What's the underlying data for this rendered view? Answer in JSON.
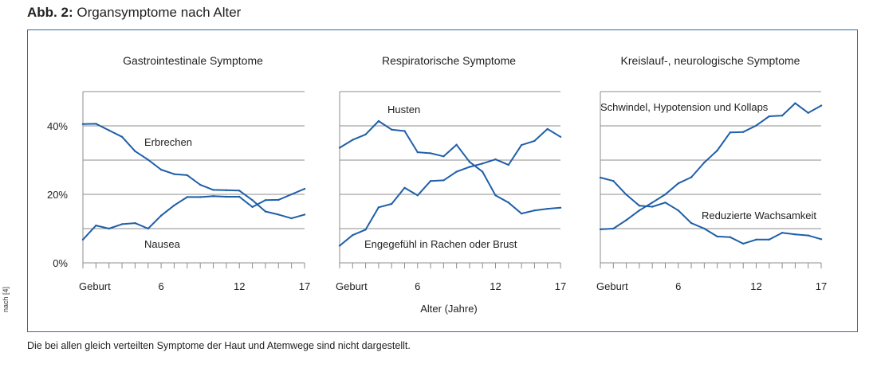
{
  "figure": {
    "label": "Abb. 2:",
    "title": "Organsymptome nach Alter",
    "source_note": "nach [4]",
    "footnote": "Die bei allen gleich verteilten Symptome der Haut und Atemwege sind nicht dargestellt.",
    "x_axis_label": "Alter (Jahre)",
    "colors": {
      "line": "#1f5fa8",
      "grid": "#8c8c8c",
      "frame": "#2b6cb0"
    }
  },
  "chart_data": [
    {
      "type": "line",
      "title": "Gastrointestinale Symptome",
      "x": [
        0,
        1,
        2,
        3,
        4,
        5,
        6,
        7,
        8,
        9,
        10,
        11,
        12,
        13,
        14,
        15,
        16,
        17
      ],
      "x_tick_labels": [
        {
          "x": 0,
          "label": "Geburt"
        },
        {
          "x": 6,
          "label": "6"
        },
        {
          "x": 12,
          "label": "12"
        },
        {
          "x": 17,
          "label": "17"
        }
      ],
      "y_tick_labels": [
        {
          "y": 0,
          "label": "0%"
        },
        {
          "y": 20,
          "label": "20%"
        },
        {
          "y": 40,
          "label": "40%"
        }
      ],
      "ylim": [
        0,
        50
      ],
      "series": [
        {
          "name": "Erbrechen",
          "values": [
            40.5,
            40.6,
            38.7,
            36.8,
            32.6,
            30.1,
            27.2,
            25.9,
            25.6,
            22.8,
            21.3,
            21.2,
            21.1,
            18.3,
            15.0,
            14.1,
            13.0,
            14.1
          ]
        },
        {
          "name": "Nausea",
          "values": [
            6.8,
            10.9,
            10.0,
            11.3,
            11.6,
            10.0,
            13.8,
            16.8,
            19.2,
            19.2,
            19.5,
            19.3,
            19.3,
            16.3,
            18.3,
            18.4,
            20.0,
            21.6
          ]
        }
      ]
    },
    {
      "type": "line",
      "title": "Respiratorische Symptome",
      "x": [
        0,
        1,
        2,
        3,
        4,
        5,
        6,
        7,
        8,
        9,
        10,
        11,
        12,
        13,
        14,
        15,
        16,
        17
      ],
      "x_tick_labels": [
        {
          "x": 0,
          "label": "Geburt"
        },
        {
          "x": 6,
          "label": "6"
        },
        {
          "x": 12,
          "label": "12"
        },
        {
          "x": 17,
          "label": "17"
        }
      ],
      "y_tick_labels": [],
      "ylim": [
        0,
        50
      ],
      "series": [
        {
          "name": "Husten",
          "values": [
            33.6,
            35.9,
            37.5,
            41.4,
            38.9,
            38.5,
            32.3,
            32.0,
            31.1,
            34.5,
            29.5,
            26.6,
            19.7,
            17.6,
            14.4,
            15.3,
            15.8,
            16.1
          ]
        },
        {
          "name": "Engegefühl in Rachen oder Brust",
          "values": [
            5.0,
            8.1,
            9.7,
            16.2,
            17.2,
            21.9,
            19.7,
            23.9,
            24.1,
            26.6,
            28.0,
            29.0,
            30.2,
            28.6,
            34.4,
            35.6,
            39.1,
            36.8
          ]
        }
      ]
    },
    {
      "type": "line",
      "title": "Kreislauf-, neurologische Symptome",
      "x": [
        0,
        1,
        2,
        3,
        4,
        5,
        6,
        7,
        8,
        9,
        10,
        11,
        12,
        13,
        14,
        15,
        16,
        17
      ],
      "x_tick_labels": [
        {
          "x": 0,
          "label": "Geburt"
        },
        {
          "x": 6,
          "label": "6"
        },
        {
          "x": 12,
          "label": "12"
        },
        {
          "x": 17,
          "label": "17"
        }
      ],
      "y_tick_labels": [],
      "ylim": [
        0,
        50
      ],
      "series": [
        {
          "name": "Schwindel, Hypotension und Kollaps",
          "values": [
            9.8,
            10.0,
            12.5,
            15.3,
            17.6,
            20.0,
            23.2,
            25.0,
            29.3,
            32.8,
            38.1,
            38.2,
            40.1,
            42.8,
            43.0,
            46.6,
            43.8,
            45.9
          ]
        },
        {
          "name": "Reduzierte Wachsamkeit",
          "values": [
            24.9,
            23.9,
            19.9,
            16.7,
            16.4,
            17.6,
            15.3,
            11.6,
            10.0,
            7.7,
            7.5,
            5.6,
            6.8,
            6.8,
            8.8,
            8.3,
            8.0,
            6.9
          ]
        }
      ]
    }
  ]
}
